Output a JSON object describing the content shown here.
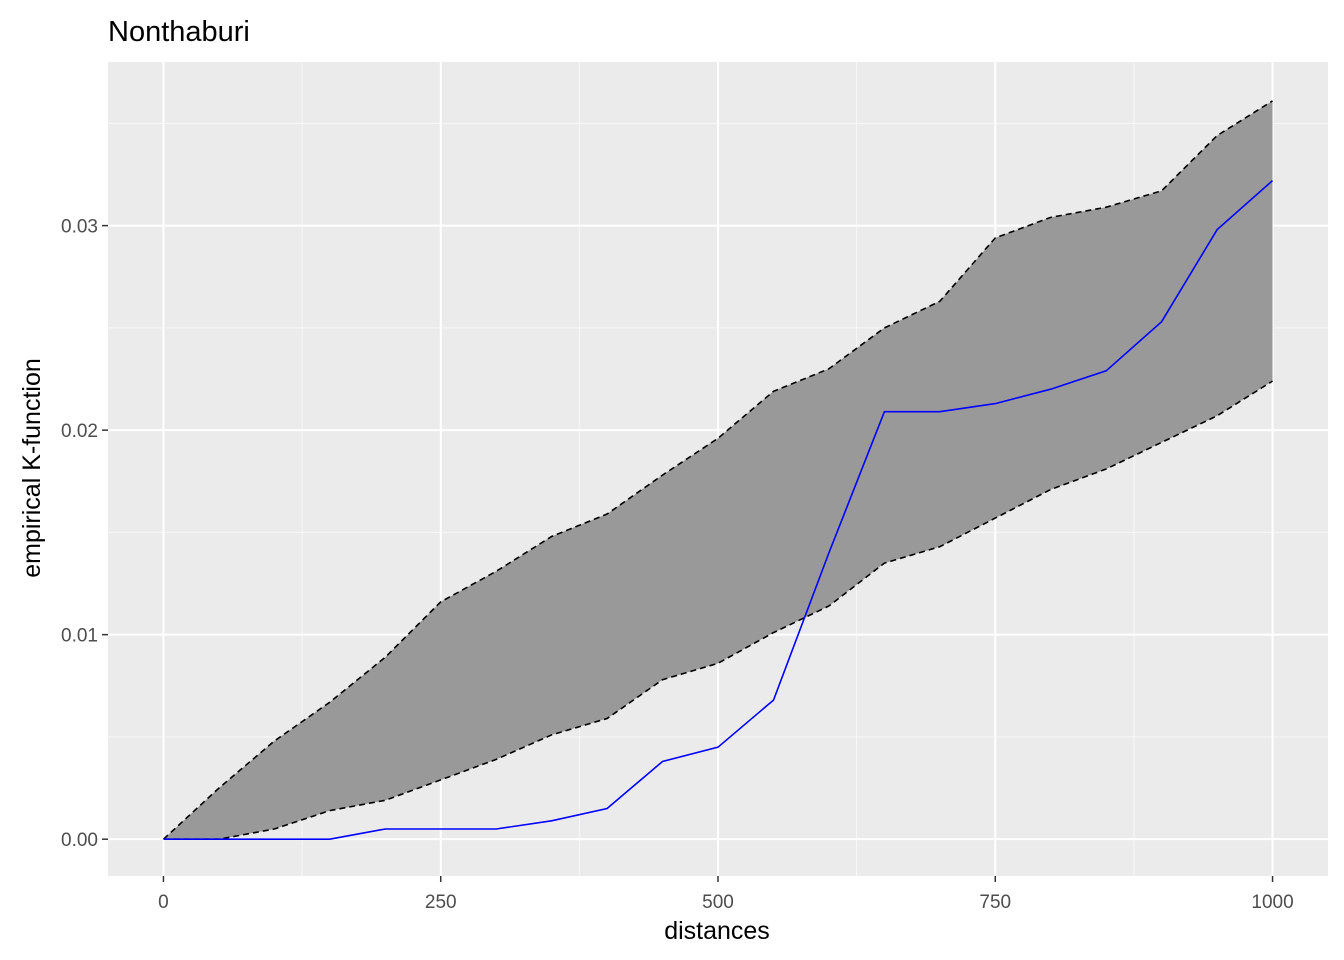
{
  "chart_data": {
    "type": "line",
    "title": "Nonthaburi",
    "xlabel": "distances",
    "ylabel": "empirical K-function",
    "xlim": [
      -50,
      1050
    ],
    "ylim": [
      -0.0018,
      0.038
    ],
    "x_ticks": [
      0,
      250,
      500,
      750,
      1000
    ],
    "x_tick_labels": [
      "0",
      "250",
      "500",
      "750",
      "1000"
    ],
    "y_ticks": [
      0.0,
      0.01,
      0.02,
      0.03
    ],
    "y_tick_labels": [
      "0.00",
      "0.01",
      "0.02",
      "0.03"
    ],
    "grid": true,
    "x": [
      0,
      50,
      100,
      150,
      200,
      250,
      300,
      350,
      400,
      450,
      500,
      550,
      600,
      650,
      700,
      750,
      800,
      850,
      900,
      950,
      1000
    ],
    "series": [
      {
        "role": "observed",
        "color": "#0000FF",
        "values": [
          0,
          0,
          0,
          0,
          0.0005,
          0.0005,
          0.0005,
          0.0009,
          0.0015,
          0.0038,
          0.0045,
          0.0068,
          0.014,
          0.0209,
          0.0209,
          0.0213,
          0.022,
          0.0229,
          0.0253,
          0.0298,
          0.0322
        ]
      }
    ],
    "envelope": {
      "fill": "#999999",
      "line_color": "#000000",
      "line_style": "dashed",
      "upper": [
        0,
        0.0025,
        0.0048,
        0.0067,
        0.0089,
        0.0116,
        0.0131,
        0.0148,
        0.0159,
        0.0178,
        0.0196,
        0.0219,
        0.023,
        0.025,
        0.0263,
        0.0294,
        0.0304,
        0.0309,
        0.0317,
        0.0344,
        0.0361
      ],
      "lower": [
        0,
        0.0,
        0.0005,
        0.0014,
        0.0019,
        0.0029,
        0.0039,
        0.0051,
        0.0059,
        0.0078,
        0.0086,
        0.0101,
        0.0114,
        0.0135,
        0.0143,
        0.0157,
        0.0171,
        0.0181,
        0.0194,
        0.0207,
        0.0224
      ]
    },
    "colors": {
      "panel_background": "#EBEBEB",
      "grid_major": "#FFFFFF",
      "tick_label": "#4D4D4D"
    }
  }
}
